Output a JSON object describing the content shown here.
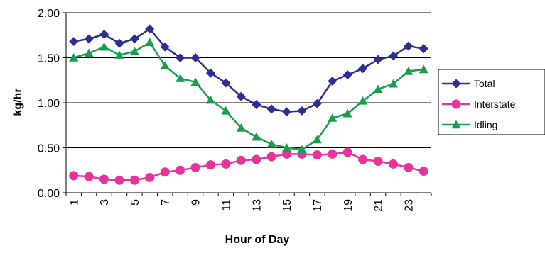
{
  "chart_data": {
    "type": "line",
    "title": "",
    "xlabel": "Hour of Day",
    "ylabel": "kg/hr",
    "xlim": [
      1,
      24
    ],
    "ylim": [
      0,
      2
    ],
    "y_ticks": [
      "0.00",
      "0.50",
      "1.00",
      "1.50",
      "2.00"
    ],
    "x_tick_labels": [
      "1",
      "3",
      "5",
      "7",
      "9",
      "11",
      "13",
      "15",
      "17",
      "19",
      "21",
      "23"
    ],
    "grid": "horizontal",
    "legend_position": "right",
    "x": [
      1,
      2,
      3,
      4,
      5,
      6,
      7,
      8,
      9,
      10,
      11,
      12,
      13,
      14,
      15,
      16,
      17,
      18,
      19,
      20,
      21,
      22,
      23,
      24
    ],
    "series": [
      {
        "name": "Total",
        "color": "#2b2f8f",
        "marker": "diamond",
        "values": [
          1.68,
          1.71,
          1.76,
          1.66,
          1.71,
          1.82,
          1.62,
          1.5,
          1.5,
          1.33,
          1.22,
          1.07,
          0.98,
          0.93,
          0.9,
          0.91,
          0.99,
          1.24,
          1.31,
          1.38,
          1.48,
          1.52,
          1.63,
          1.6
        ]
      },
      {
        "name": "Interstate",
        "color": "#e8339a",
        "marker": "circle",
        "values": [
          0.19,
          0.18,
          0.15,
          0.14,
          0.14,
          0.17,
          0.23,
          0.25,
          0.28,
          0.31,
          0.32,
          0.36,
          0.37,
          0.4,
          0.43,
          0.43,
          0.42,
          0.43,
          0.45,
          0.37,
          0.35,
          0.32,
          0.28,
          0.24
        ]
      },
      {
        "name": "Idling",
        "color": "#1a9e4b",
        "marker": "triangle",
        "values": [
          1.5,
          1.55,
          1.62,
          1.53,
          1.57,
          1.67,
          1.41,
          1.27,
          1.23,
          1.03,
          0.91,
          0.72,
          0.62,
          0.54,
          0.5,
          0.48,
          0.59,
          0.83,
          0.88,
          1.02,
          1.15,
          1.21,
          1.35,
          1.37
        ]
      }
    ]
  }
}
